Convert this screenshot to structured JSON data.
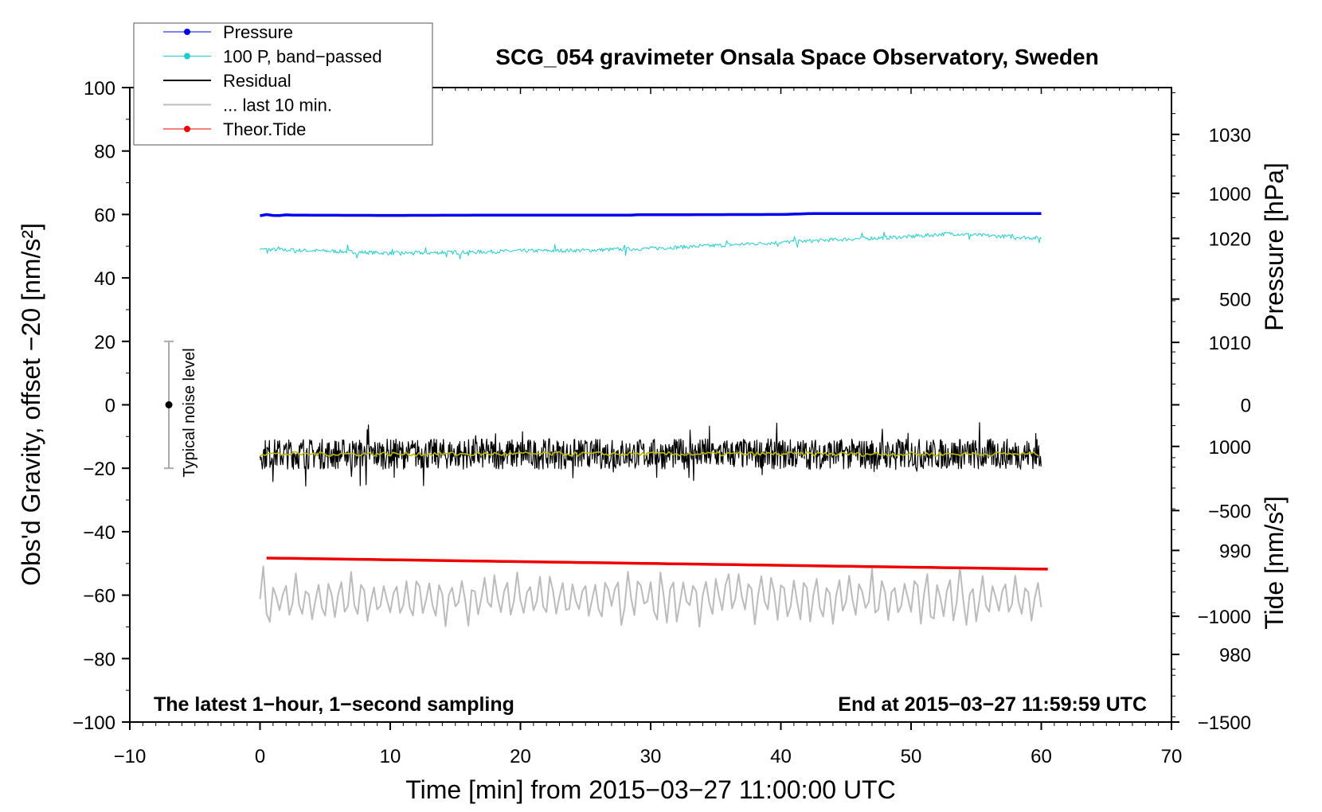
{
  "chart_data": {
    "type": "line",
    "title": "SCG_054 gravimeter Onsala Space Observatory, Sweden",
    "xlabel": "Time [min] from 2015−03−27 11:00:00 UTC",
    "ylabel_left": "Obs'd Gravity, offset −20 [nm/s²]",
    "ylabel_right_top": "Pressure [hPa]",
    "ylabel_right_bottom": "Tide [nm/s²]",
    "xlim": [
      -10,
      70
    ],
    "ylim": [
      -100,
      100
    ],
    "pressure_range": [
      973.5,
      1034.5
    ],
    "tide_range": [
      -1500,
      1500
    ],
    "x_ticks": [
      "−10",
      "0",
      "10",
      "20",
      "30",
      "40",
      "50",
      "60",
      "70"
    ],
    "y_ticks": [
      "100",
      "80",
      "60",
      "40",
      "20",
      "0",
      "−20",
      "−40",
      "−60",
      "−80",
      "−100"
    ],
    "pressure_ticks": [
      "1030",
      "1020",
      "1010",
      "1000",
      "990",
      "980"
    ],
    "tide_ticks": [
      "1000",
      "500",
      "0",
      "−500",
      "−1000",
      "−1500"
    ],
    "noise_bar_label": "Typical noise level",
    "noise_bar": {
      "x": -7,
      "center": 0,
      "half_range": 20
    },
    "annotation_left": "The latest 1−hour, 1−second sampling",
    "annotation_right": "End at 2015−03−27 11:59:59 UTC",
    "legend": [
      {
        "label": "Pressure",
        "color": "#0000ee",
        "marker": true
      },
      {
        "label": "100 P, band−passed",
        "color": "#22cccc",
        "marker": true
      },
      {
        "label": "Residual",
        "color": "#000000",
        "marker": false
      },
      {
        "label": "... last 10 min.",
        "color": "#bbbbbb",
        "marker": false
      },
      {
        "label": "Theor.Tide",
        "color": "#ee0000",
        "marker": true
      }
    ],
    "series": [
      {
        "name": "Pressure",
        "color": "#0000ee",
        "x": [
          0,
          10,
          20,
          28.7,
          29,
          40,
          42.5,
          50,
          60
        ],
        "y": [
          59.8,
          59.7,
          59.8,
          59.8,
          59.9,
          60.0,
          60.3,
          60.3,
          60.3
        ]
      },
      {
        "name": "100 P, band−passed",
        "color": "#22cccc",
        "x": [
          0,
          5,
          10,
          15,
          20,
          25,
          30,
          35,
          40,
          45,
          50,
          53,
          55,
          60
        ],
        "y": [
          49,
          48.5,
          47.8,
          48,
          48.5,
          48.7,
          49.3,
          50.2,
          51.2,
          52.2,
          53,
          54,
          53.5,
          52.5
        ]
      },
      {
        "name": "Residual",
        "color": "#000000",
        "x": [
          0,
          60
        ],
        "y": [
          -15.5,
          -15.5
        ],
        "noise_amplitude": 6
      },
      {
        "name": "Residual smoothed",
        "color": "#bbbb00",
        "x": [
          0,
          60
        ],
        "y": [
          -15.5,
          -15.5
        ]
      },
      {
        "name": "... last 10 min.",
        "color": "#bbbbbb",
        "x": [
          0,
          60
        ],
        "y": [
          -61,
          -61
        ],
        "noise_amplitude": 6
      },
      {
        "name": "Theor.Tide",
        "color": "#ee0000",
        "x": [
          0.5,
          60.5
        ],
        "y": [
          -48.3,
          -51.8
        ]
      }
    ]
  }
}
